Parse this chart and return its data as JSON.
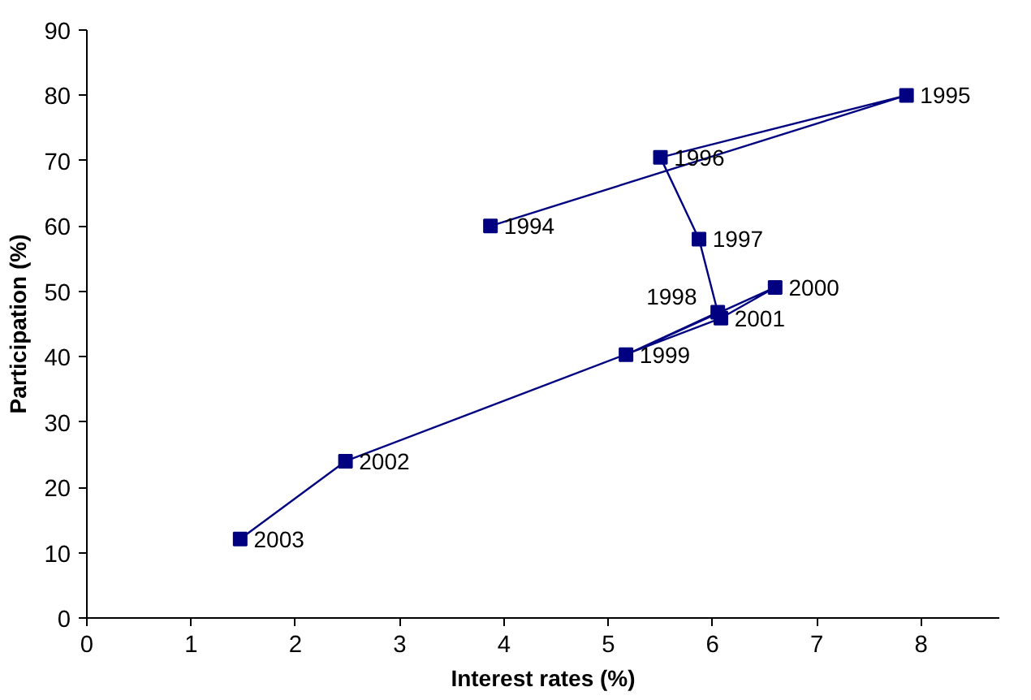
{
  "chart_data": {
    "type": "line",
    "xlabel": "Interest rates (%)",
    "ylabel": "Participation (%)",
    "x": [
      3.87,
      7.86,
      5.5,
      5.87,
      6.05,
      5.17,
      6.6,
      6.08,
      2.48,
      1.47
    ],
    "series": [
      {
        "color": "#000080",
        "values": [
          60,
          80,
          70.5,
          58,
          46.8,
          40.3,
          50.6,
          45.9,
          24,
          12.1
        ]
      }
    ],
    "xlim": [
      0,
      8.75
    ],
    "xticks": [
      0,
      1,
      2,
      3,
      4,
      5,
      6,
      7,
      8
    ],
    "ylim": [
      0,
      90
    ],
    "yticks": [
      0,
      10,
      20,
      30,
      40,
      50,
      60,
      70,
      80,
      90
    ],
    "marker": "square",
    "line_style": "solid",
    "annotations": [
      {
        "text": "1994",
        "x": 3.87,
        "y": 60
      },
      {
        "text": "1995",
        "x": 7.86,
        "y": 80
      },
      {
        "text": "1996",
        "x": 5.5,
        "y": 70.5
      },
      {
        "text": "1997",
        "x": 5.87,
        "y": 58
      },
      {
        "text": "1998",
        "x": 6.05,
        "y": 46.8
      },
      {
        "text": "1999",
        "x": 5.17,
        "y": 40.3
      },
      {
        "text": "2000",
        "x": 6.6,
        "y": 50.6
      },
      {
        "text": "2001",
        "x": 6.08,
        "y": 45.9
      },
      {
        "text": "2002",
        "x": 2.48,
        "y": 24
      },
      {
        "text": "2003",
        "x": 1.47,
        "y": 12.1
      }
    ]
  }
}
